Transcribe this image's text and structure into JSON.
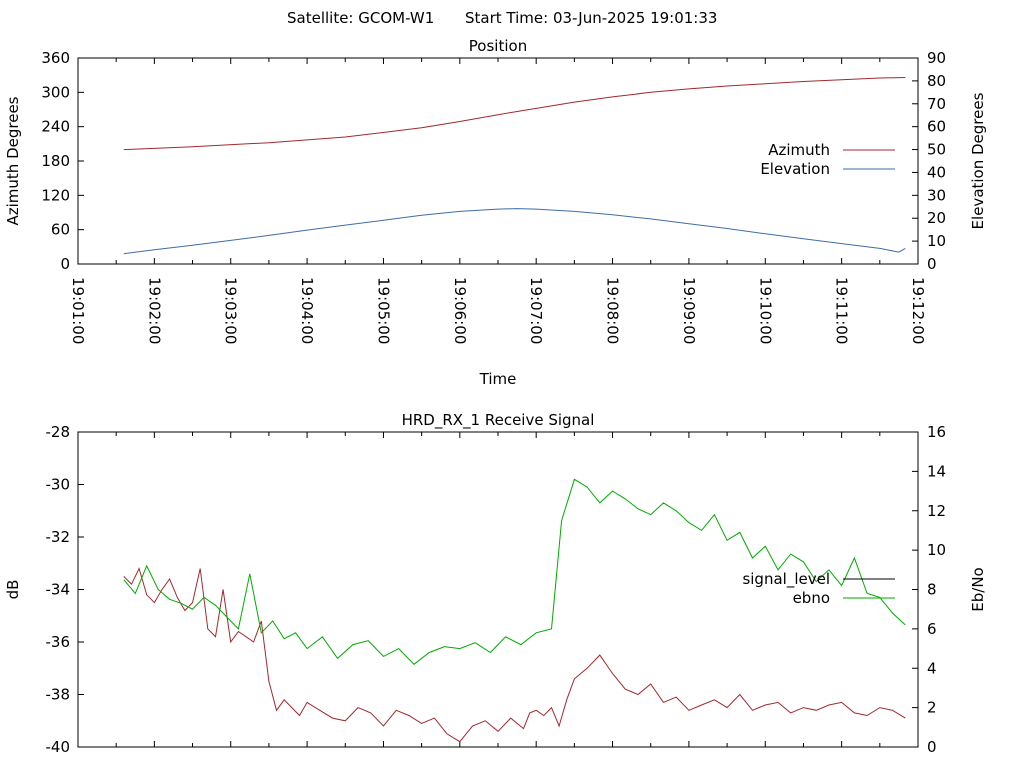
{
  "header": {
    "satellite": "Satellite: GCOM-W1",
    "start_time": "Start Time: 03-Jun-2025 19:01:33"
  },
  "colors": {
    "azimuth": "#a0292e",
    "elevation": "#3d6da6",
    "signal_level": "#a0292e",
    "ebno": "#00aa00",
    "signal_level_legend": "#000000",
    "ebno_legend": "#00aa00"
  },
  "chart_data": [
    {
      "type": "line",
      "title": "Position",
      "xlabel": "Time",
      "ylabel": "Azimuth Degrees",
      "y2label": "Elevation Degrees",
      "x_ticks": [
        "19:01:00",
        "19:02:00",
        "19:03:00",
        "19:04:00",
        "19:05:00",
        "19:06:00",
        "19:07:00",
        "19:08:00",
        "19:09:00",
        "19:10:00",
        "19:11:00",
        "19:12:00"
      ],
      "xlim": [
        "19:01:00",
        "19:12:00"
      ],
      "ylim": [
        0,
        360
      ],
      "y2lim": [
        0,
        90
      ],
      "y_ticks": [
        0,
        60,
        120,
        180,
        240,
        300,
        360
      ],
      "y2_ticks": [
        0,
        10,
        20,
        30,
        40,
        50,
        60,
        70,
        80,
        90
      ],
      "legend": "right",
      "series": [
        {
          "name": "Azimuth",
          "axis": "y",
          "x": [
            "19:01:36",
            "19:02:30",
            "19:03:30",
            "19:04:30",
            "19:05:30",
            "19:06:00",
            "19:06:30",
            "19:07:00",
            "19:07:30",
            "19:08:00",
            "19:08:30",
            "19:09:00",
            "19:09:30",
            "19:10:00",
            "19:10:30",
            "19:11:00",
            "19:11:30",
            "19:11:50"
          ],
          "values": [
            200,
            205,
            212,
            222,
            238,
            249,
            261,
            272,
            283,
            292,
            300,
            306,
            311,
            315,
            319,
            322,
            325,
            326
          ]
        },
        {
          "name": "Elevation",
          "axis": "y2",
          "x": [
            "19:01:36",
            "19:02:00",
            "19:02:30",
            "19:03:00",
            "19:03:30",
            "19:04:00",
            "19:04:30",
            "19:05:00",
            "19:05:30",
            "19:06:00",
            "19:06:30",
            "19:06:45",
            "19:07:00",
            "19:07:30",
            "19:08:00",
            "19:08:30",
            "19:09:00",
            "19:09:30",
            "19:10:00",
            "19:10:30",
            "19:11:00",
            "19:11:30",
            "19:11:45",
            "19:11:50"
          ],
          "values": [
            4.5,
            6.2,
            8.2,
            10.3,
            12.5,
            14.8,
            17.0,
            19.1,
            21.3,
            23.0,
            24.0,
            24.2,
            24.0,
            23.0,
            21.5,
            19.7,
            17.6,
            15.5,
            13.2,
            11.0,
            8.9,
            6.8,
            5.2,
            6.8
          ]
        }
      ]
    },
    {
      "type": "line",
      "title": "HRD_RX_1 Receive Signal",
      "ylabel": "dB",
      "y2label": "Eb/No",
      "ylim": [
        -40,
        -28
      ],
      "y2lim": [
        0,
        16
      ],
      "y_ticks": [
        -40,
        -38,
        -36,
        -34,
        -32,
        -30,
        -28
      ],
      "y2_ticks": [
        0,
        2,
        4,
        6,
        8,
        10,
        12,
        14,
        16
      ],
      "xlim": [
        "19:01:00",
        "19:12:00"
      ],
      "legend": "right",
      "series": [
        {
          "name": "signal_level",
          "axis": "y",
          "x": [
            "19:01:36",
            "19:01:42",
            "19:01:48",
            "19:01:54",
            "19:02:00",
            "19:02:06",
            "19:02:12",
            "19:02:18",
            "19:02:24",
            "19:02:30",
            "19:02:36",
            "19:02:42",
            "19:02:48",
            "19:02:54",
            "19:03:00",
            "19:03:06",
            "19:03:12",
            "19:03:18",
            "19:03:24",
            "19:03:30",
            "19:03:36",
            "19:03:42",
            "19:03:48",
            "19:03:54",
            "19:04:00",
            "19:04:10",
            "19:04:20",
            "19:04:30",
            "19:04:40",
            "19:04:50",
            "19:05:00",
            "19:05:10",
            "19:05:20",
            "19:05:30",
            "19:05:40",
            "19:05:50",
            "19:06:00",
            "19:06:10",
            "19:06:20",
            "19:06:30",
            "19:06:40",
            "19:06:50",
            "19:06:55",
            "19:07:00",
            "19:07:06",
            "19:07:12",
            "19:07:18",
            "19:07:24",
            "19:07:30",
            "19:07:40",
            "19:07:50",
            "19:08:00",
            "19:08:10",
            "19:08:20",
            "19:08:30",
            "19:08:40",
            "19:08:50",
            "19:09:00",
            "19:09:10",
            "19:09:20",
            "19:09:30",
            "19:09:40",
            "19:09:50",
            "19:10:00",
            "19:10:10",
            "19:10:20",
            "19:10:30",
            "19:10:40",
            "19:10:50",
            "19:11:00",
            "19:11:10",
            "19:11:20",
            "19:11:30",
            "19:11:40",
            "19:11:50"
          ],
          "values": [
            -33.5,
            -33.8,
            -33.2,
            -34.2,
            -34.5,
            -34.0,
            -33.6,
            -34.3,
            -34.8,
            -34.5,
            -33.2,
            -35.5,
            -35.8,
            -34.0,
            -36.0,
            -35.6,
            -35.8,
            -36.0,
            -35.2,
            -37.5,
            -38.6,
            -38.2,
            -38.5,
            -38.8,
            -38.3,
            -38.6,
            -38.9,
            -39.0,
            -38.5,
            -38.7,
            -39.2,
            -38.6,
            -38.8,
            -39.1,
            -38.9,
            -39.5,
            -39.8,
            -39.2,
            -39.0,
            -39.4,
            -38.9,
            -39.3,
            -38.7,
            -38.6,
            -38.8,
            -38.5,
            -39.2,
            -38.2,
            -37.4,
            -37.0,
            -36.5,
            -37.2,
            -37.8,
            -38.0,
            -37.6,
            -38.3,
            -38.1,
            -38.6,
            -38.4,
            -38.2,
            -38.5,
            -38.0,
            -38.6,
            -38.4,
            -38.3,
            -38.7,
            -38.5,
            -38.6,
            -38.4,
            -38.3,
            -38.7,
            -38.8,
            -38.5,
            -38.6,
            -38.9
          ]
        },
        {
          "name": "ebno",
          "axis": "y2",
          "x": [
            "19:01:36",
            "19:01:45",
            "19:01:54",
            "19:02:03",
            "19:02:12",
            "19:02:21",
            "19:02:30",
            "19:02:39",
            "19:02:48",
            "19:02:57",
            "19:03:06",
            "19:03:15",
            "19:03:24",
            "19:03:33",
            "19:03:42",
            "19:03:51",
            "19:04:00",
            "19:04:12",
            "19:04:24",
            "19:04:36",
            "19:04:48",
            "19:05:00",
            "19:05:12",
            "19:05:24",
            "19:05:36",
            "19:05:48",
            "19:06:00",
            "19:06:12",
            "19:06:24",
            "19:06:36",
            "19:06:48",
            "19:07:00",
            "19:07:12",
            "19:07:20",
            "19:07:30",
            "19:07:40",
            "19:07:50",
            "19:08:00",
            "19:08:10",
            "19:08:20",
            "19:08:30",
            "19:08:40",
            "19:08:50",
            "19:09:00",
            "19:09:10",
            "19:09:20",
            "19:09:30",
            "19:09:40",
            "19:09:50",
            "19:10:00",
            "19:10:10",
            "19:10:20",
            "19:10:30",
            "19:10:40",
            "19:10:50",
            "19:11:00",
            "19:11:10",
            "19:11:20",
            "19:11:30",
            "19:11:40",
            "19:11:50"
          ],
          "values": [
            8.5,
            7.8,
            9.2,
            8.0,
            7.5,
            7.3,
            7.0,
            7.6,
            7.2,
            6.6,
            6.0,
            8.8,
            5.8,
            6.4,
            5.5,
            5.8,
            5.0,
            5.6,
            4.5,
            5.2,
            5.4,
            4.6,
            5.0,
            4.2,
            4.8,
            5.1,
            5.0,
            5.3,
            4.8,
            5.6,
            5.2,
            5.8,
            6.0,
            11.5,
            13.6,
            13.2,
            12.4,
            13.0,
            12.6,
            12.1,
            11.8,
            12.4,
            12.0,
            11.4,
            11.0,
            11.8,
            10.5,
            10.9,
            9.6,
            10.2,
            9.0,
            9.8,
            9.4,
            8.4,
            9.0,
            8.2,
            9.6,
            7.8,
            7.6,
            6.8,
            6.2
          ]
        }
      ]
    }
  ]
}
